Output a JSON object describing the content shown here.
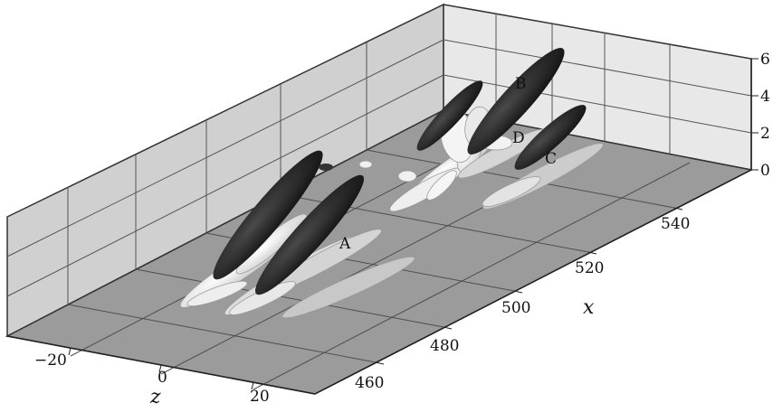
{
  "axes": {
    "x": {
      "title": "x",
      "ticks": [
        "460",
        "480",
        "500",
        "520",
        "540"
      ]
    },
    "z": {
      "title": "z",
      "ticks": [
        "−20",
        "0",
        "20"
      ]
    },
    "y": {
      "ticks": [
        "0",
        "2",
        "4",
        "6"
      ]
    }
  },
  "structure_labels": [
    "A",
    "B",
    "C",
    "D"
  ],
  "colors": {
    "floor": "#9a9a9a",
    "back_wall": "#e6e6e6",
    "side_wall": "#cfcfcf",
    "dark_structure": "#262626",
    "light_structure": "#efefef"
  }
}
